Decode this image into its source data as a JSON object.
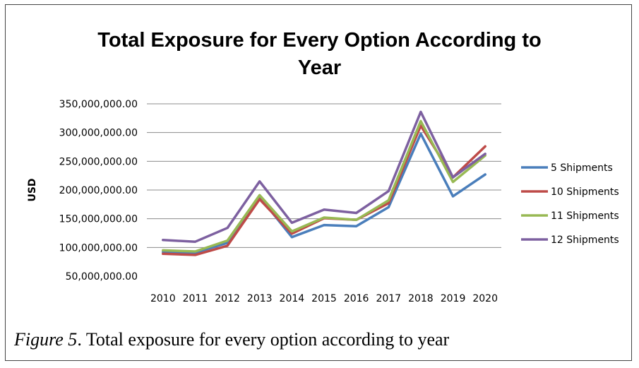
{
  "chart_data": {
    "type": "line",
    "title": "Total Exposure for Every Option According to Year",
    "title_lines": [
      "Total Exposure for Every Option According to",
      "Year"
    ],
    "xlabel": "",
    "ylabel": "USD",
    "x": [
      "2010",
      "2011",
      "2012",
      "2013",
      "2014",
      "2015",
      "2016",
      "2017",
      "2018",
      "2019",
      "2020"
    ],
    "ylim": [
      50000000,
      350000000
    ],
    "yticks": [
      50000000,
      100000000,
      150000000,
      200000000,
      250000000,
      300000000,
      350000000
    ],
    "ytick_labels": [
      "50,000,000.00",
      "100,000,000.00",
      "150,000,000.00",
      "200,000,000.00",
      "250,000,000.00",
      "300,000,000.00",
      "350,000,000.00"
    ],
    "grid": "horizontal",
    "legend_position": "right",
    "series": [
      {
        "name": "5 Shipments",
        "color": "#4a7ebb",
        "values": [
          92000000,
          91000000,
          108000000,
          188000000,
          118000000,
          139000000,
          137000000,
          170000000,
          298000000,
          189000000,
          227000000
        ]
      },
      {
        "name": "10 Shipments",
        "color": "#be4b48",
        "values": [
          89000000,
          87000000,
          103000000,
          184000000,
          124000000,
          151000000,
          148000000,
          177000000,
          312000000,
          222000000,
          276000000
        ]
      },
      {
        "name": "11 Shipments",
        "color": "#98b954",
        "values": [
          95000000,
          93000000,
          112000000,
          191000000,
          128000000,
          152000000,
          148000000,
          182000000,
          320000000,
          214000000,
          260000000
        ]
      },
      {
        "name": "12 Shipments",
        "color": "#7d60a0",
        "values": [
          113000000,
          110000000,
          134000000,
          215000000,
          143000000,
          166000000,
          160000000,
          198000000,
          336000000,
          222000000,
          263000000
        ]
      }
    ]
  },
  "caption": {
    "figure_label": "Figure 5",
    "text": ". Total exposure for every option according to year"
  }
}
